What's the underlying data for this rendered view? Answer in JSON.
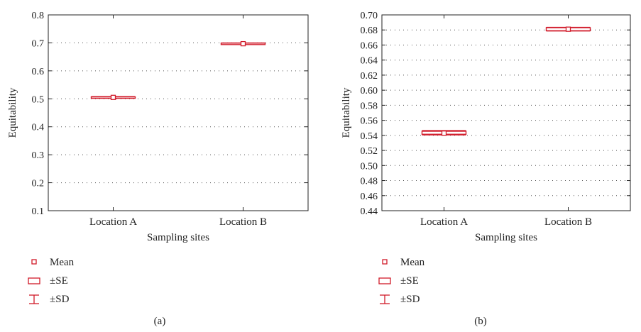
{
  "chart_data": [
    {
      "type": "box",
      "panel_label": "(a)",
      "ylabel": "Equitability",
      "xlabel": "Sampling sites",
      "categories": [
        "Location A",
        "Location B"
      ],
      "ylim": [
        0.1,
        0.8
      ],
      "yticks": [
        0.1,
        0.2,
        0.3,
        0.4,
        0.5,
        0.6,
        0.7,
        0.8
      ],
      "ytick_labels": [
        "0.1",
        "0.2",
        "0.3",
        "0.4",
        "0.5",
        "0.6",
        "0.7",
        "0.8"
      ],
      "grid": "dotted horizontal",
      "series": [
        {
          "category": "Location A",
          "mean": 0.505,
          "se_low": 0.503,
          "se_high": 0.507,
          "sd_low": 0.502,
          "sd_high": 0.508
        },
        {
          "category": "Location B",
          "mean": 0.697,
          "se_low": 0.695,
          "se_high": 0.699,
          "sd_low": 0.694,
          "sd_high": 0.7
        }
      ],
      "legend": [
        "Mean",
        "±SE",
        "±SD"
      ]
    },
    {
      "type": "box",
      "panel_label": "(b)",
      "ylabel": "Equitability",
      "xlabel": "Sampling sites",
      "categories": [
        "Location A",
        "Location B"
      ],
      "ylim": [
        0.44,
        0.7
      ],
      "yticks": [
        0.44,
        0.46,
        0.48,
        0.5,
        0.52,
        0.54,
        0.56,
        0.58,
        0.6,
        0.62,
        0.64,
        0.66,
        0.68,
        0.7
      ],
      "ytick_labels": [
        "0.44",
        "0.46",
        "0.48",
        "0.50",
        "0.52",
        "0.54",
        "0.56",
        "0.58",
        "0.60",
        "0.62",
        "0.64",
        "0.66",
        "0.68",
        "0.70"
      ],
      "grid": "dotted horizontal",
      "series": [
        {
          "category": "Location A",
          "mean": 0.543,
          "se_low": 0.5415,
          "se_high": 0.5455,
          "sd_low": 0.5405,
          "sd_high": 0.5465
        },
        {
          "category": "Location B",
          "mean": 0.681,
          "se_low": 0.679,
          "se_high": 0.683,
          "sd_low": 0.6785,
          "sd_high": 0.6835
        }
      ],
      "legend": [
        "Mean",
        "±SE",
        "±SD"
      ]
    }
  ],
  "style": {
    "accent": "#d11b2a",
    "axis_color": "#222222",
    "grid_color": "#555555"
  }
}
